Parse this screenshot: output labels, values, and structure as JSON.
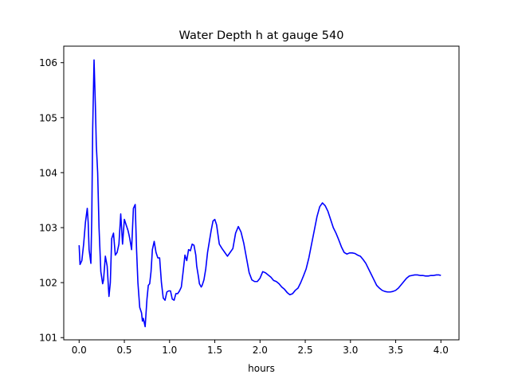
{
  "chart_data": {
    "type": "line",
    "title": "Water Depth h at gauge 540",
    "xlabel": "hours",
    "ylabel": "",
    "xlim": [
      -0.17,
      4.2
    ],
    "ylim": [
      100.96,
      106.3
    ],
    "xticks": [
      0.0,
      0.5,
      1.0,
      1.5,
      2.0,
      2.5,
      3.0,
      3.5,
      4.0
    ],
    "xtick_labels": [
      "0.0",
      "0.5",
      "1.0",
      "1.5",
      "2.0",
      "2.5",
      "3.0",
      "3.5",
      "4.0"
    ],
    "yticks": [
      101,
      102,
      103,
      104,
      105,
      106
    ],
    "ytick_labels": [
      "101",
      "102",
      "103",
      "104",
      "105",
      "106"
    ],
    "grid": false,
    "series": [
      {
        "color": "#0000ff",
        "x": [
          0.0,
          0.01,
          0.03,
          0.05,
          0.07,
          0.09,
          0.1,
          0.11,
          0.13,
          0.14,
          0.15,
          0.165,
          0.18,
          0.19,
          0.205,
          0.22,
          0.24,
          0.26,
          0.27,
          0.29,
          0.31,
          0.33,
          0.345,
          0.36,
          0.38,
          0.4,
          0.42,
          0.44,
          0.46,
          0.48,
          0.5,
          0.52,
          0.54,
          0.55,
          0.56,
          0.58,
          0.6,
          0.62,
          0.635,
          0.65,
          0.67,
          0.69,
          0.7,
          0.71,
          0.73,
          0.75,
          0.765,
          0.78,
          0.795,
          0.81,
          0.83,
          0.85,
          0.87,
          0.89,
          0.91,
          0.93,
          0.95,
          0.97,
          0.99,
          1.01,
          1.03,
          1.05,
          1.07,
          1.09,
          1.11,
          1.13,
          1.15,
          1.17,
          1.19,
          1.21,
          1.23,
          1.25,
          1.27,
          1.29,
          1.3,
          1.32,
          1.33,
          1.35,
          1.36,
          1.38,
          1.4,
          1.42,
          1.44,
          1.46,
          1.48,
          1.5,
          1.52,
          1.55,
          1.58,
          1.61,
          1.64,
          1.67,
          1.7,
          1.73,
          1.76,
          1.79,
          1.82,
          1.85,
          1.88,
          1.91,
          1.94,
          1.97,
          2.0,
          2.03,
          2.06,
          2.09,
          2.12,
          2.15,
          2.18,
          2.21,
          2.24,
          2.27,
          2.3,
          2.33,
          2.36,
          2.39,
          2.42,
          2.45,
          2.48,
          2.51,
          2.54,
          2.57,
          2.6,
          2.63,
          2.66,
          2.69,
          2.72,
          2.75,
          2.78,
          2.81,
          2.84,
          2.87,
          2.9,
          2.93,
          2.96,
          2.99,
          3.02,
          3.05,
          3.08,
          3.11,
          3.14,
          3.17,
          3.2,
          3.23,
          3.26,
          3.29,
          3.32,
          3.35,
          3.38,
          3.41,
          3.44,
          3.47,
          3.5,
          3.53,
          3.56,
          3.59,
          3.62,
          3.65,
          3.68,
          3.71,
          3.74,
          3.77,
          3.8,
          3.83,
          3.86,
          3.89,
          3.92,
          3.95,
          3.98,
          4.0
        ],
        "y": [
          102.68,
          102.33,
          102.4,
          102.7,
          103.1,
          103.35,
          103.1,
          102.6,
          102.35,
          103.2,
          104.8,
          106.05,
          105.2,
          104.5,
          104.0,
          103.0,
          102.2,
          101.98,
          102.05,
          102.48,
          102.3,
          101.75,
          102.0,
          102.8,
          102.9,
          102.5,
          102.55,
          102.7,
          103.25,
          102.7,
          103.15,
          103.05,
          102.95,
          102.88,
          102.8,
          102.6,
          103.35,
          103.42,
          102.6,
          102.0,
          101.55,
          101.45,
          101.3,
          101.35,
          101.2,
          101.7,
          101.95,
          101.98,
          102.2,
          102.6,
          102.75,
          102.55,
          102.45,
          102.45,
          102.0,
          101.72,
          101.68,
          101.83,
          101.85,
          101.85,
          101.7,
          101.68,
          101.8,
          101.8,
          101.85,
          101.92,
          102.2,
          102.5,
          102.4,
          102.6,
          102.58,
          102.7,
          102.68,
          102.5,
          102.3,
          102.1,
          101.98,
          101.92,
          101.95,
          102.05,
          102.25,
          102.55,
          102.75,
          102.95,
          103.12,
          103.15,
          103.05,
          102.7,
          102.62,
          102.55,
          102.48,
          102.55,
          102.62,
          102.9,
          103.02,
          102.92,
          102.72,
          102.45,
          102.18,
          102.05,
          102.02,
          102.02,
          102.08,
          102.2,
          102.18,
          102.14,
          102.1,
          102.04,
          102.02,
          101.98,
          101.92,
          101.88,
          101.82,
          101.78,
          101.8,
          101.86,
          101.9,
          102.0,
          102.12,
          102.25,
          102.45,
          102.7,
          102.95,
          103.2,
          103.38,
          103.45,
          103.4,
          103.3,
          103.15,
          103.0,
          102.9,
          102.78,
          102.65,
          102.55,
          102.52,
          102.54,
          102.54,
          102.53,
          102.5,
          102.48,
          102.42,
          102.35,
          102.25,
          102.15,
          102.05,
          101.95,
          101.9,
          101.86,
          101.84,
          101.83,
          101.83,
          101.84,
          101.86,
          101.9,
          101.96,
          102.02,
          102.08,
          102.12,
          102.13,
          102.14,
          102.14,
          102.13,
          102.13,
          102.12,
          102.12,
          102.13,
          102.13,
          102.14,
          102.14,
          102.13
        ]
      }
    ]
  }
}
